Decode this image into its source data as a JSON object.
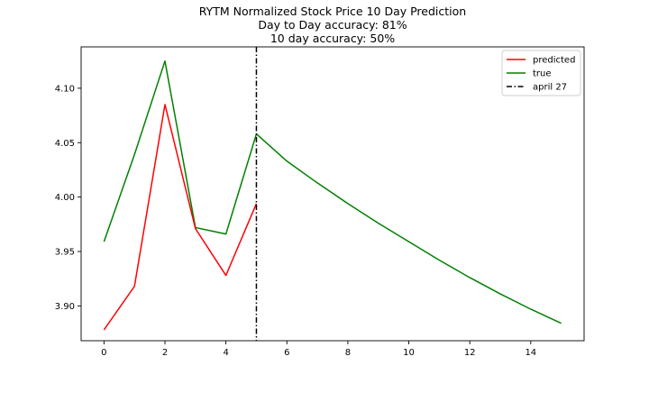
{
  "chart_data": {
    "type": "line",
    "title_lines": [
      "RYTM Normalized Stock Price 10 Day Prediction",
      "Day to Day accuracy: 81%",
      "10 day accuracy: 50%"
    ],
    "xlim": [
      -0.75,
      15.75
    ],
    "ylim": [
      3.868,
      4.138
    ],
    "x_ticks": [
      0,
      2,
      4,
      6,
      8,
      10,
      12,
      14
    ],
    "y_ticks": [
      3.9,
      3.95,
      4.0,
      4.05,
      4.1
    ],
    "y_tick_labels": [
      "3.90",
      "3.95",
      "4.00",
      "4.05",
      "4.10"
    ],
    "series": [
      {
        "name": "predicted",
        "color": "#ff0000",
        "x": [
          0,
          1,
          2,
          3,
          4,
          5
        ],
        "y": [
          3.878,
          3.918,
          4.085,
          3.971,
          3.928,
          3.994
        ]
      },
      {
        "name": "true",
        "color": "#008000",
        "x": [
          0,
          1,
          2,
          3,
          4,
          5,
          6,
          7,
          8,
          9,
          10,
          11,
          12,
          13,
          14,
          15
        ],
        "y": [
          3.959,
          4.039,
          4.125,
          3.972,
          3.966,
          4.058,
          4.033,
          4.013,
          3.994,
          3.976,
          3.959,
          3.942,
          3.926,
          3.911,
          3.897,
          3.884
        ]
      }
    ],
    "vline": {
      "name": "april 27",
      "x": 5,
      "color": "#000000",
      "style": "dashdot"
    },
    "legend_position": "upper right"
  }
}
